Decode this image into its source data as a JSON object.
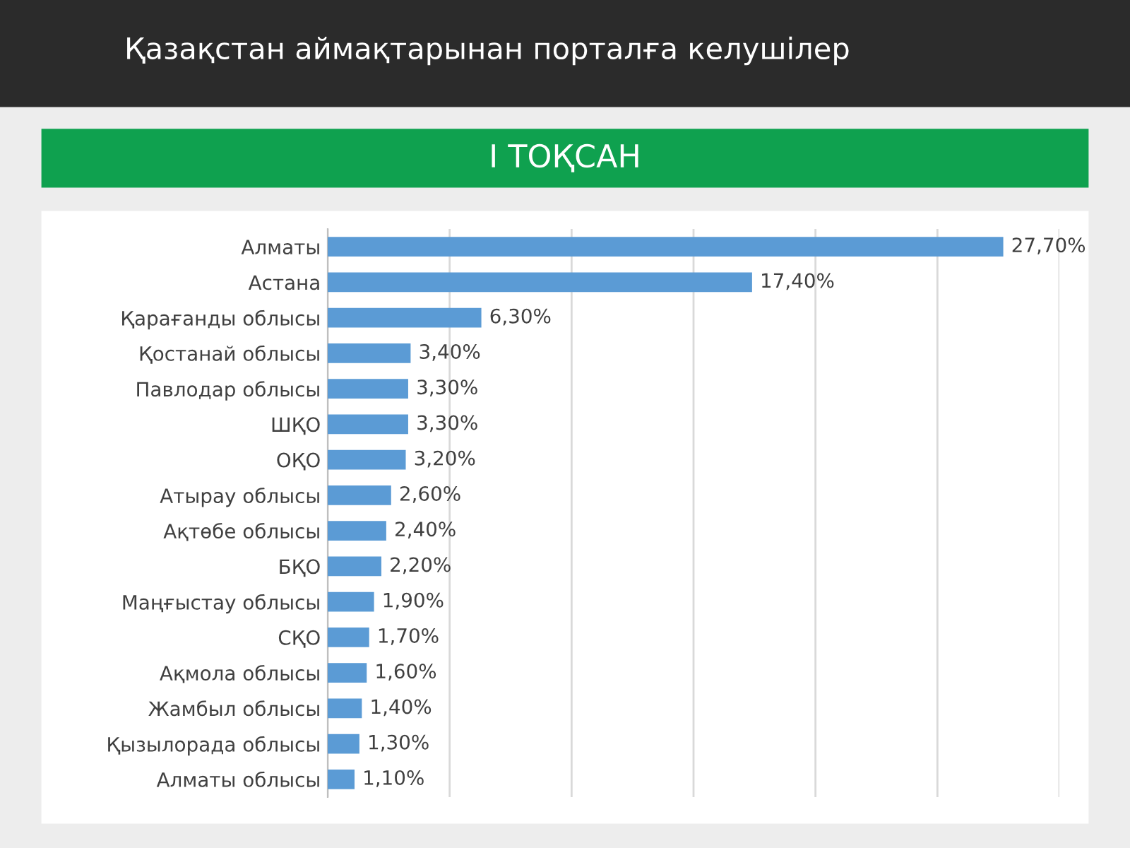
{
  "chart_data": {
    "type": "bar",
    "orientation": "horizontal",
    "title": "Қазақстан аймақтарынан порталға келушілер",
    "subtitle": "І ТОҚСАН",
    "categories": [
      "Алматы",
      "Астана",
      "Қарағанды облысы",
      "Қостанай облысы",
      "Павлодар облысы",
      "ШҚО",
      "ОҚО",
      "Атырау облысы",
      "Ақтөбе облысы",
      "БҚО",
      "Маңғыстау облысы",
      "СҚО",
      "Ақмола облысы",
      "Жамбыл облысы",
      "Қызылорада облысы",
      "Алматы облысы"
    ],
    "values": [
      27.7,
      17.4,
      6.3,
      3.4,
      3.3,
      3.3,
      3.2,
      2.6,
      2.4,
      2.2,
      1.9,
      1.7,
      1.6,
      1.4,
      1.3,
      1.1
    ],
    "value_labels": [
      "27,70%",
      "17,40%",
      "6,30%",
      "3,40%",
      "3,30%",
      "3,30%",
      "3,20%",
      "2,60%",
      "2,40%",
      "2,20%",
      "1,90%",
      "1,70%",
      "1,60%",
      "1,40%",
      "1,30%",
      "1,10%"
    ],
    "color": "#5b9bd5",
    "xlim": [
      0,
      30
    ],
    "xticks": [
      {
        "value": 0,
        "label": null
      },
      {
        "value": 5,
        "label": null
      },
      {
        "value": 10,
        "label": null
      },
      {
        "value": 15,
        "label": null
      },
      {
        "value": 20,
        "label": null
      },
      {
        "value": 25,
        "label": null
      },
      {
        "value": 30,
        "label": null
      }
    ],
    "tick_labels": "y",
    "grid": "x",
    "legend": false
  }
}
